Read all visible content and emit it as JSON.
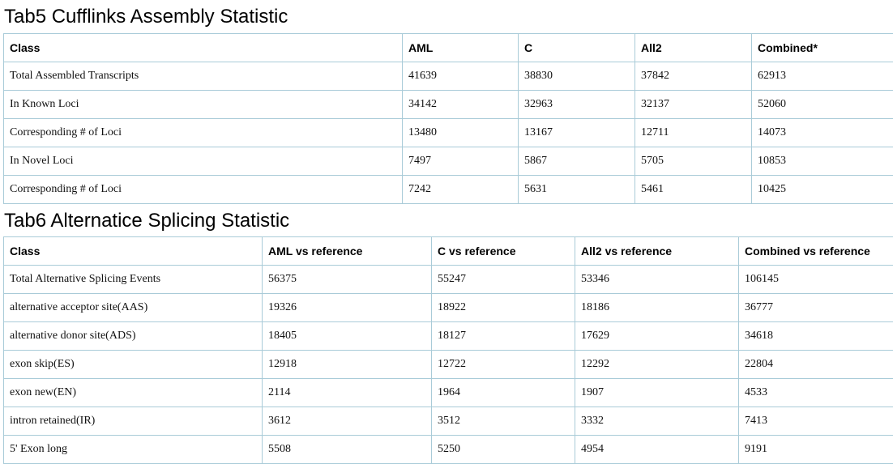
{
  "tab5": {
    "title": "Tab5 Cufflinks Assembly Statistic",
    "headers": [
      "Class",
      "AML",
      "C",
      "All2",
      "Combined*"
    ],
    "rows": [
      [
        "Total Assembled Transcripts",
        "41639",
        "38830",
        "37842",
        "62913"
      ],
      [
        "In Known Loci",
        "34142",
        "32963",
        "32137",
        "52060"
      ],
      [
        "Corresponding # of Loci",
        "13480",
        "13167",
        "12711",
        "14073"
      ],
      [
        "In Novel Loci",
        "7497",
        "5867",
        "5705",
        "10853"
      ],
      [
        "Corresponding # of Loci",
        "7242",
        "5631",
        "5461",
        "10425"
      ]
    ]
  },
  "tab6": {
    "title": "Tab6 Alternatice Splicing Statistic",
    "headers": [
      "Class",
      "AML vs reference",
      "C vs reference",
      "All2 vs reference",
      "Combined vs reference"
    ],
    "rows": [
      [
        "Total Alternative Splicing Events",
        "56375",
        "55247",
        "53346",
        "106145"
      ],
      [
        "alternative acceptor site(AAS)",
        "19326",
        "18922",
        "18186",
        "36777"
      ],
      [
        "alternative donor site(ADS)",
        "18405",
        "18127",
        "17629",
        "34618"
      ],
      [
        "exon skip(ES)",
        "12918",
        "12722",
        "12292",
        "22804"
      ],
      [
        "exon new(EN)",
        "2114",
        "1964",
        "1907",
        "4533"
      ],
      [
        "intron retained(IR)",
        "3612",
        "3512",
        "3332",
        "7413"
      ],
      [
        "5' Exon long",
        "5508",
        "5250",
        "4954",
        "9191"
      ]
    ]
  }
}
